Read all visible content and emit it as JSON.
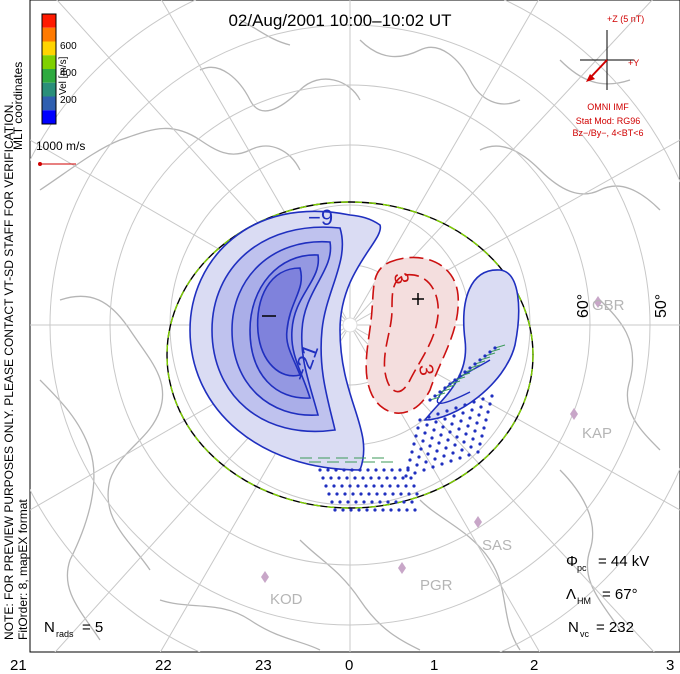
{
  "title": "02/Aug/2001 10:00–10:02 UT",
  "colorbar": {
    "label": "Vel [m/s]",
    "ticks": [
      "600",
      "400",
      "200"
    ],
    "colors": [
      "#ff1a00",
      "#ff7a00",
      "#ffd400",
      "#7fd000",
      "#2faa40",
      "#2a8f7a",
      "#2f5fb0",
      "#0000ff"
    ]
  },
  "coord_label": "MLT coordinates",
  "vector_scale": {
    "label": "1000 m/s",
    "color": "#d00000"
  },
  "side_note": "NOTE: FOR PREVIEW PURPOSES ONLY. PLEASE CONTACT VT-SD STAFF FOR VERIFICATION.",
  "fit_note": "FitOrder: 8, mapEX format",
  "imf": {
    "z_label": "+Z (5 nT)",
    "y_label": "+Y",
    "source": "OMNI IMF",
    "stat_mod": "Stat Mod: RG96",
    "condition": "Bz−/By−, 4<BT<6",
    "color": "#d00000"
  },
  "contours": {
    "min_label": "−21",
    "mid_label": "−9",
    "pos_label_a": "3",
    "pos_label_b": "3",
    "neg_color": "#1f2fbf",
    "pos_color": "#cc1111"
  },
  "latitude_labels": [
    "60°",
    "50°"
  ],
  "radar_labels": [
    "GBR",
    "KAP",
    "SAS",
    "PGR",
    "KOD"
  ],
  "stats": {
    "phi_pc": "= 44 kV",
    "lambda_hm": "= 67°",
    "n_vc": "= 232",
    "n_rads": "= 5"
  },
  "mlt_ticks": [
    "21",
    "22",
    "23",
    "0",
    "1",
    "2",
    "3"
  ]
}
